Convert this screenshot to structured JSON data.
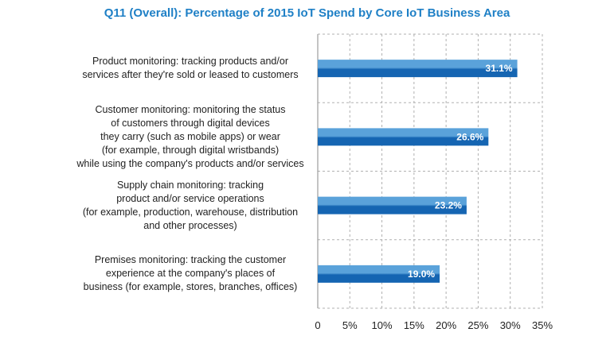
{
  "chart_data": {
    "type": "bar",
    "orientation": "horizontal",
    "title": "Q11 (Overall): Percentage of 2015 IoT Spend by Core IoT Business Area",
    "categories": [
      [
        "Product monitoring: tracking products and/or",
        "services after they're sold or leased to customers"
      ],
      [
        "Customer monitoring: monitoring the status",
        "of customers through digital devices",
        "they carry (such as mobile apps) or wear",
        "(for example, through digital wristbands)",
        "while using the company's products and/or services"
      ],
      [
        "Supply chain monitoring: tracking",
        "product and/or service operations",
        "(for example, production, warehouse, distribution",
        "and other processes)"
      ],
      [
        "Premises monitoring: tracking the customer",
        "experience at the company's places of",
        "business (for example, stores, branches, offices)"
      ]
    ],
    "values": [
      31.1,
      26.6,
      23.2,
      19.0
    ],
    "value_labels": [
      "31.1%",
      "26.6%",
      "23.2%",
      "19.0%"
    ],
    "x_ticks": [
      0,
      5,
      10,
      15,
      20,
      25,
      30,
      35
    ],
    "x_tick_labels": [
      "0",
      "5%",
      "10%",
      "15%",
      "20%",
      "25%",
      "30%",
      "35%"
    ],
    "xlim": [
      0,
      35
    ],
    "grid": "dashed vertical and horizontal",
    "legend": "none",
    "colors": {
      "bar_light": "#5aa2da",
      "bar_dark": "#1565b2",
      "title": "#1f80c6",
      "grid": "#b0b0b0"
    }
  }
}
